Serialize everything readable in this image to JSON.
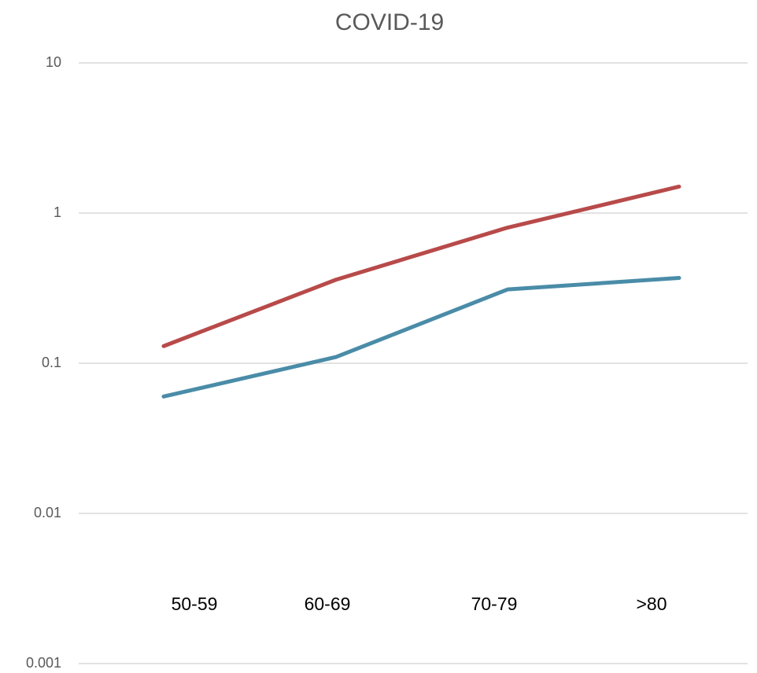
{
  "chart_data": {
    "type": "line",
    "title": "COVID-19",
    "categories": [
      "50-59",
      "60-69",
      "70-79",
      ">80"
    ],
    "series": [
      {
        "color": "#b84a4a",
        "values": [
          0.13,
          0.36,
          0.8,
          1.5
        ]
      },
      {
        "color": "#4a8ca8",
        "values": [
          0.06,
          0.11,
          0.31,
          0.37
        ]
      }
    ],
    "ylim": [
      0.001,
      10
    ],
    "yticks": [
      10,
      1,
      0.1,
      0.01,
      0.001
    ],
    "log_scale": true,
    "grid": true
  }
}
